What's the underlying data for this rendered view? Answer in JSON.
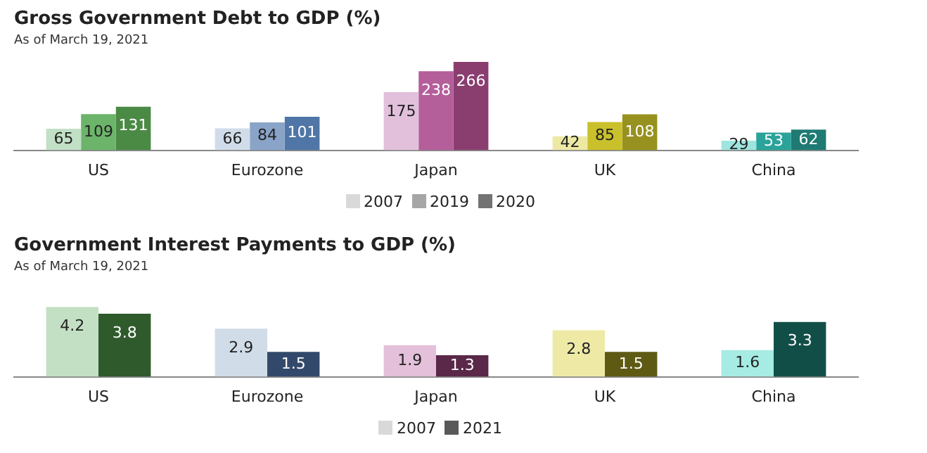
{
  "chart_data": [
    {
      "type": "bar",
      "title": "Gross Government Debt to GDP (%)",
      "subtitle": "As of March 19, 2021",
      "categories": [
        "US",
        "Eurozone",
        "Japan",
        "UK",
        "China"
      ],
      "series": [
        {
          "name": "2007",
          "color": "#d9d9d9",
          "colors": [
            "#c2e0c6",
            "#d0dcea",
            "#e2c0dc",
            "#ede9a4",
            "#9ee5df"
          ],
          "values": [
            65,
            66,
            175,
            42,
            29
          ]
        },
        {
          "name": "2019",
          "color": "#a6a6a6",
          "colors": [
            "#6cb46a",
            "#8aa4c8",
            "#b45e9a",
            "#c9c02c",
            "#2aa39a"
          ],
          "values": [
            109,
            84,
            238,
            85,
            53
          ]
        },
        {
          "name": "2020",
          "color": "#737373",
          "colors": [
            "#4a8a45",
            "#4f76a6",
            "#8a3e70",
            "#97921f",
            "#1e7a72"
          ],
          "values": [
            131,
            101,
            266,
            108,
            62
          ]
        }
      ],
      "data_labels": true,
      "legend": "bottom",
      "grid": false,
      "tick_labels": "x"
    },
    {
      "type": "bar",
      "title": "Government Interest Payments to GDP (%)",
      "subtitle": "As of March 19, 2021",
      "categories": [
        "US",
        "Eurozone",
        "Japan",
        "UK",
        "China"
      ],
      "series": [
        {
          "name": "2007",
          "color": "#d9d9d9",
          "colors": [
            "#c3e0c4",
            "#d0dce8",
            "#e4c0da",
            "#eeeaa6",
            "#a6ebe4"
          ],
          "values": [
            4.2,
            2.9,
            1.9,
            2.8,
            1.6
          ]
        },
        {
          "name": "2021",
          "color": "#595959",
          "colors": [
            "#2e5a2c",
            "#33496b",
            "#5a2848",
            "#5e5a14",
            "#124e48"
          ],
          "values": [
            3.8,
            1.5,
            1.3,
            1.5,
            3.3
          ]
        }
      ],
      "data_labels": true,
      "legend": "bottom",
      "grid": false,
      "tick_labels": "x"
    }
  ]
}
